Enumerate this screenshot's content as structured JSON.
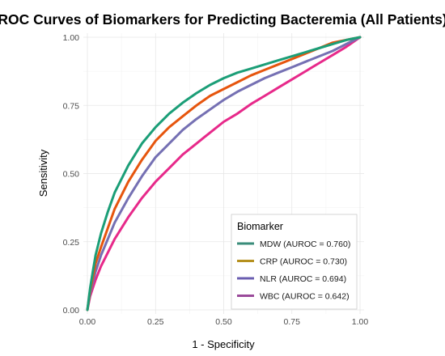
{
  "chart_data": {
    "type": "line",
    "title": "ROC Curves of Biomarkers for Predicting Bacteremia (All Patients)",
    "xlabel": "1 - Specificity",
    "ylabel": "Sensitivity",
    "xlim": [
      0,
      1
    ],
    "ylim": [
      0,
      1
    ],
    "xticks": [
      "0.00",
      "0.25",
      "0.50",
      "0.75",
      "1.00"
    ],
    "yticks": [
      "0.00",
      "0.25",
      "0.50",
      "0.75",
      "1.00"
    ],
    "grid": true,
    "legend": {
      "title": "Biomarker",
      "position": "bottom-right"
    },
    "series": [
      {
        "name": "MDW (AUROC = 0.760)",
        "color": "#1b9e77",
        "x": [
          0,
          0.01,
          0.02,
          0.03,
          0.05,
          0.075,
          0.1,
          0.15,
          0.2,
          0.25,
          0.3,
          0.35,
          0.4,
          0.45,
          0.5,
          0.55,
          0.6,
          0.65,
          0.7,
          0.75,
          0.8,
          0.85,
          0.9,
          0.95,
          1.0
        ],
        "y": [
          0,
          0.08,
          0.14,
          0.2,
          0.28,
          0.36,
          0.43,
          0.53,
          0.61,
          0.67,
          0.72,
          0.76,
          0.795,
          0.825,
          0.85,
          0.87,
          0.885,
          0.9,
          0.915,
          0.93,
          0.945,
          0.96,
          0.975,
          0.99,
          1.0
        ]
      },
      {
        "name": "CRP (AUROC = 0.730)",
        "color": "#e6550d",
        "x": [
          0,
          0.01,
          0.02,
          0.03,
          0.05,
          0.075,
          0.1,
          0.15,
          0.2,
          0.25,
          0.3,
          0.35,
          0.4,
          0.45,
          0.5,
          0.55,
          0.6,
          0.65,
          0.7,
          0.75,
          0.8,
          0.85,
          0.9,
          0.95,
          1.0
        ],
        "y": [
          0,
          0.07,
          0.12,
          0.17,
          0.23,
          0.3,
          0.37,
          0.47,
          0.55,
          0.62,
          0.67,
          0.71,
          0.75,
          0.785,
          0.81,
          0.835,
          0.86,
          0.88,
          0.9,
          0.92,
          0.94,
          0.96,
          0.98,
          0.99,
          1.0
        ]
      },
      {
        "name": "NLR (AUROC = 0.694)",
        "color": "#7570b3",
        "x": [
          0,
          0.01,
          0.02,
          0.03,
          0.05,
          0.075,
          0.1,
          0.15,
          0.2,
          0.25,
          0.3,
          0.35,
          0.4,
          0.45,
          0.5,
          0.55,
          0.6,
          0.65,
          0.7,
          0.75,
          0.8,
          0.85,
          0.9,
          0.95,
          1.0
        ],
        "y": [
          0,
          0.06,
          0.1,
          0.14,
          0.2,
          0.26,
          0.32,
          0.41,
          0.49,
          0.56,
          0.61,
          0.66,
          0.7,
          0.735,
          0.77,
          0.8,
          0.825,
          0.85,
          0.87,
          0.89,
          0.91,
          0.93,
          0.95,
          0.975,
          1.0
        ]
      },
      {
        "name": "WBC (AUROC = 0.642)",
        "color": "#e7298a",
        "x": [
          0,
          0.01,
          0.02,
          0.03,
          0.05,
          0.075,
          0.1,
          0.15,
          0.2,
          0.25,
          0.3,
          0.35,
          0.4,
          0.45,
          0.5,
          0.55,
          0.6,
          0.65,
          0.7,
          0.75,
          0.8,
          0.85,
          0.9,
          0.95,
          1.0
        ],
        "y": [
          0,
          0.05,
          0.08,
          0.11,
          0.16,
          0.21,
          0.26,
          0.34,
          0.41,
          0.47,
          0.52,
          0.57,
          0.61,
          0.65,
          0.69,
          0.72,
          0.755,
          0.785,
          0.815,
          0.845,
          0.875,
          0.905,
          0.935,
          0.965,
          1.0
        ]
      }
    ]
  },
  "legend_key_colors": [
    "#3a8c7a",
    "#b5901e",
    "#6a5db0",
    "#9a4a9a"
  ]
}
